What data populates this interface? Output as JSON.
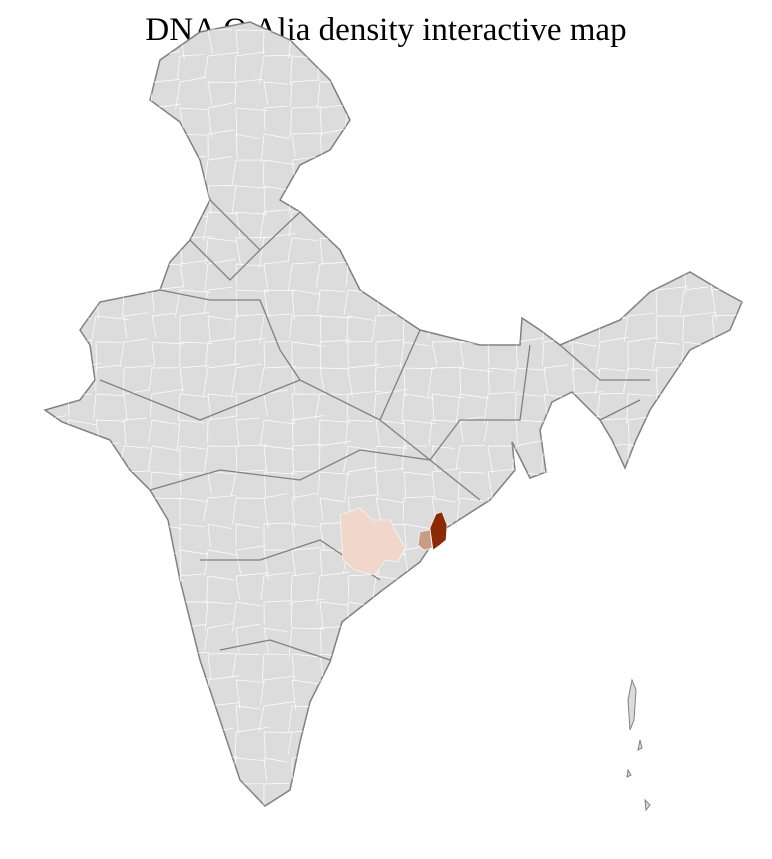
{
  "title": "DNA O Alia density interactive map",
  "colors": {
    "land": "#dcdcdc",
    "district_border": "#ffffff",
    "state_border": "#808080",
    "density_high": "#8b2a05",
    "density_medium": "#c99a84",
    "density_low": "#f1d7c9"
  },
  "highlighted_regions": [
    {
      "level": "high"
    },
    {
      "level": "medium"
    },
    {
      "level": "low"
    }
  ]
}
